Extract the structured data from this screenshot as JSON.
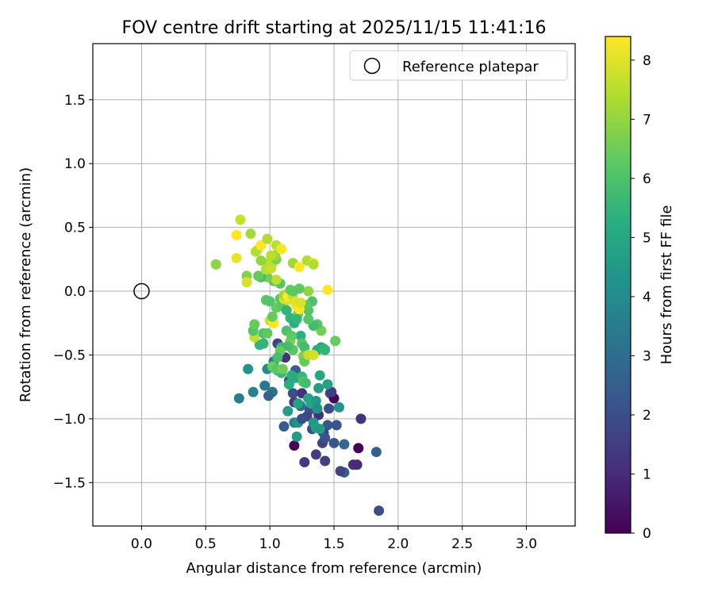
{
  "chart_data": {
    "type": "scatter",
    "title": "FOV centre drift starting at 2025/11/15 11:41:16",
    "xlabel": "Angular distance from reference (arcmin)",
    "ylabel": "Rotation from reference (arcmin)",
    "xlim": [
      -0.38,
      3.38
    ],
    "ylim": [
      -1.84,
      1.94
    ],
    "xticks": [
      0.0,
      0.5,
      1.0,
      1.5,
      2.0,
      2.5,
      3.0
    ],
    "xtick_labels": [
      "0.0",
      "0.5",
      "1.0",
      "1.5",
      "2.0",
      "2.5",
      "3.0"
    ],
    "yticks": [
      -1.5,
      -1.0,
      -0.5,
      0.0,
      0.5,
      1.0,
      1.5
    ],
    "ytick_labels": [
      "−1.5",
      "−1.0",
      "−0.5",
      "0.0",
      "0.5",
      "1.0",
      "1.5"
    ],
    "grid": true,
    "legend": {
      "placement": "top-right",
      "entries": [
        "Reference platepar"
      ]
    },
    "reference_point": {
      "x": 0.0,
      "y": 0.0,
      "label": "Reference platepar"
    },
    "colorbar": {
      "label": "Hours from first FF file",
      "range": [
        0,
        8.4
      ],
      "ticks": [
        0,
        1,
        2,
        3,
        4,
        5,
        6,
        7,
        8
      ],
      "tick_labels": [
        "0",
        "1",
        "2",
        "3",
        "4",
        "5",
        "6",
        "7",
        "8"
      ],
      "colormap": "viridis"
    },
    "points_columns": [
      "x",
      "y",
      "hours"
    ],
    "points": [
      [
        1.85,
        -1.72,
        1.9
      ],
      [
        1.65,
        -1.36,
        1.2
      ],
      [
        1.68,
        -1.36,
        1.0
      ],
      [
        1.58,
        -1.42,
        2.6
      ],
      [
        1.55,
        -1.41,
        1.7
      ],
      [
        1.71,
        -1.0,
        1.2
      ],
      [
        1.69,
        -1.23,
        0.1
      ],
      [
        1.83,
        -1.26,
        2.6
      ],
      [
        1.27,
        -1.34,
        1.5
      ],
      [
        1.36,
        -1.28,
        1.5
      ],
      [
        1.43,
        -1.33,
        1.6
      ],
      [
        1.19,
        -1.21,
        0.2
      ],
      [
        1.5,
        -1.19,
        2.3
      ],
      [
        1.41,
        -1.19,
        1.7
      ],
      [
        1.58,
        -1.2,
        2.8
      ],
      [
        1.52,
        -1.05,
        2.2
      ],
      [
        1.45,
        -1.05,
        2.3
      ],
      [
        1.47,
        -0.8,
        2.0
      ],
      [
        1.5,
        -0.84,
        0.2
      ],
      [
        1.48,
        -0.79,
        1.5
      ],
      [
        1.46,
        -0.92,
        2.0
      ],
      [
        1.38,
        -0.97,
        1.2
      ],
      [
        1.31,
        -0.93,
        2.1
      ],
      [
        1.29,
        -0.98,
        1.7
      ],
      [
        1.33,
        -1.08,
        2.0
      ],
      [
        1.35,
        -1.06,
        2.5
      ],
      [
        1.41,
        -1.1,
        2.2
      ],
      [
        1.42,
        -1.11,
        1.7
      ],
      [
        1.43,
        -1.15,
        2.1
      ],
      [
        1.11,
        -1.06,
        2.4
      ],
      [
        1.19,
        -1.03,
        3.6
      ],
      [
        1.22,
        -1.03,
        4.2
      ],
      [
        1.21,
        -1.14,
        4.6
      ],
      [
        1.25,
        -1.0,
        2.0
      ],
      [
        1.24,
        -0.9,
        3.1
      ],
      [
        1.19,
        -0.87,
        1.3
      ],
      [
        1.18,
        -0.8,
        2.0
      ],
      [
        1.25,
        -0.8,
        1.2
      ],
      [
        1.2,
        -0.62,
        2.5
      ],
      [
        1.15,
        -0.7,
        2.2
      ],
      [
        1.12,
        -0.52,
        1.2
      ],
      [
        1.06,
        -0.41,
        1.8
      ],
      [
        1.02,
        -0.79,
        3.3
      ],
      [
        0.99,
        -0.82,
        2.7
      ],
      [
        0.96,
        -0.74,
        3.4
      ],
      [
        0.76,
        -0.84,
        3.6
      ],
      [
        0.87,
        -0.79,
        3.8
      ],
      [
        0.83,
        -0.61,
        4.3
      ],
      [
        0.98,
        -0.61,
        4.0
      ],
      [
        1.03,
        -0.55,
        3.5
      ],
      [
        1.06,
        -0.62,
        4.9
      ],
      [
        1.04,
        -0.6,
        5.1
      ],
      [
        1.09,
        -0.64,
        5.6
      ],
      [
        1.17,
        -0.66,
        5.3
      ],
      [
        1.2,
        -0.68,
        5.1
      ],
      [
        1.25,
        -0.67,
        5.6
      ],
      [
        1.26,
        -0.71,
        6.0
      ],
      [
        1.28,
        -0.72,
        5.8
      ],
      [
        1.15,
        -0.73,
        5.2
      ],
      [
        1.14,
        -0.94,
        4.6
      ],
      [
        1.22,
        -0.88,
        4.8
      ],
      [
        1.3,
        -0.84,
        5.0
      ],
      [
        1.32,
        -0.88,
        5.0
      ],
      [
        1.36,
        -0.86,
        4.5
      ],
      [
        1.37,
        -0.92,
        4.2
      ],
      [
        1.38,
        -0.76,
        4.6
      ],
      [
        1.34,
        -1.03,
        4.4
      ],
      [
        1.36,
        -1.07,
        4.7
      ],
      [
        1.39,
        -1.08,
        4.5
      ],
      [
        1.54,
        -0.91,
        4.3
      ],
      [
        1.39,
        -0.66,
        5.0
      ],
      [
        1.37,
        -0.46,
        5.2
      ],
      [
        1.4,
        -0.44,
        5.0
      ],
      [
        1.43,
        -0.46,
        5.4
      ],
      [
        1.51,
        -0.39,
        6.4
      ],
      [
        1.4,
        -0.31,
        6.6
      ],
      [
        1.37,
        -0.26,
        6.2
      ],
      [
        1.34,
        -0.27,
        5.8
      ],
      [
        1.3,
        -0.22,
        6.2
      ],
      [
        1.3,
        -0.15,
        6.1
      ],
      [
        1.33,
        -0.08,
        6.0
      ],
      [
        1.28,
        -0.11,
        6.3
      ],
      [
        1.22,
        -0.18,
        6.7
      ],
      [
        1.24,
        -0.35,
        5.3
      ],
      [
        1.25,
        -0.41,
        6.1
      ],
      [
        1.27,
        -0.44,
        5.8
      ],
      [
        1.26,
        -0.51,
        6.8
      ],
      [
        1.27,
        -0.55,
        6.4
      ],
      [
        1.3,
        -0.5,
        7.7
      ],
      [
        1.34,
        -0.5,
        7.8
      ],
      [
        1.18,
        -0.46,
        6.2
      ],
      [
        1.16,
        -0.39,
        6.8
      ],
      [
        1.14,
        -0.43,
        5.9
      ],
      [
        1.09,
        -0.44,
        5.7
      ],
      [
        1.08,
        -0.47,
        6.4
      ],
      [
        1.06,
        -0.52,
        5.9
      ],
      [
        1.02,
        -0.59,
        6.5
      ],
      [
        1.05,
        -0.61,
        6.2
      ],
      [
        1.1,
        -0.61,
        6.5
      ],
      [
        0.92,
        -0.42,
        5.5
      ],
      [
        0.95,
        -0.41,
        5.5
      ],
      [
        0.88,
        -0.36,
        7.6
      ],
      [
        0.87,
        -0.31,
        6.1
      ],
      [
        0.88,
        -0.26,
        6.4
      ],
      [
        0.95,
        -0.33,
        6.0
      ],
      [
        0.98,
        -0.33,
        6.3
      ],
      [
        1.0,
        -0.23,
        7.7
      ],
      [
        1.03,
        -0.25,
        8.4
      ],
      [
        1.02,
        -0.2,
        6.4
      ],
      [
        1.05,
        -0.13,
        6.4
      ],
      [
        1.1,
        -0.12,
        6.2
      ],
      [
        1.13,
        -0.15,
        5.5
      ],
      [
        1.16,
        -0.21,
        5.5
      ],
      [
        1.19,
        -0.25,
        5.3
      ],
      [
        1.21,
        -0.22,
        5.5
      ],
      [
        1.13,
        -0.31,
        6.0
      ],
      [
        1.17,
        -0.35,
        6.3
      ],
      [
        1.08,
        -0.06,
        6.1
      ],
      [
        0.97,
        -0.07,
        6.2
      ],
      [
        1.0,
        -0.08,
        6.1
      ],
      [
        1.11,
        -0.06,
        7.8
      ],
      [
        1.14,
        -0.07,
        7.9
      ],
      [
        1.11,
        -0.03,
        7.2
      ],
      [
        1.14,
        -0.04,
        8.4
      ],
      [
        1.18,
        -0.04,
        7.7
      ],
      [
        1.21,
        -0.12,
        8.3
      ],
      [
        1.2,
        -0.09,
        8.1
      ],
      [
        1.23,
        -0.14,
        8.4
      ],
      [
        1.24,
        -0.09,
        7.9
      ],
      [
        1.3,
        0.0,
        7.0
      ],
      [
        1.23,
        0.02,
        6.3
      ],
      [
        1.18,
        0.0,
        6.2
      ],
      [
        1.16,
        0.01,
        6.3
      ],
      [
        1.08,
        0.06,
        6.1
      ],
      [
        1.03,
        0.08,
        6.1
      ],
      [
        1.05,
        0.09,
        7.6
      ],
      [
        0.98,
        0.11,
        6.6
      ],
      [
        0.93,
        0.11,
        5.9
      ],
      [
        0.91,
        0.12,
        6.4
      ],
      [
        0.82,
        0.12,
        6.8
      ],
      [
        0.82,
        0.07,
        7.9
      ],
      [
        0.97,
        0.17,
        7.5
      ],
      [
        0.98,
        0.22,
        7.5
      ],
      [
        1.01,
        0.18,
        7.7
      ],
      [
        1.02,
        0.22,
        7.6
      ],
      [
        1.05,
        0.25,
        6.7
      ],
      [
        1.04,
        0.28,
        7.1
      ],
      [
        1.01,
        0.28,
        7.5
      ],
      [
        0.93,
        0.24,
        7.0
      ],
      [
        0.91,
        0.33,
        8.2
      ],
      [
        0.89,
        0.31,
        7.4
      ],
      [
        0.93,
        0.36,
        8.4
      ],
      [
        0.98,
        0.41,
        7.4
      ],
      [
        1.05,
        0.36,
        7.6
      ],
      [
        1.09,
        0.33,
        8.3
      ],
      [
        0.85,
        0.45,
        7.2
      ],
      [
        0.77,
        0.56,
        7.7
      ],
      [
        0.74,
        0.44,
        8.4
      ],
      [
        0.74,
        0.26,
        8.1
      ],
      [
        0.58,
        0.21,
        6.9
      ],
      [
        1.18,
        0.22,
        7.2
      ],
      [
        1.23,
        0.19,
        8.4
      ],
      [
        1.29,
        0.24,
        7.4
      ],
      [
        1.34,
        0.22,
        8.4
      ],
      [
        1.34,
        0.21,
        7.4
      ],
      [
        1.45,
        0.01,
        8.4
      ],
      [
        1.42,
        -0.45,
        5.5
      ],
      [
        1.45,
        -0.73,
        4.8
      ]
    ]
  }
}
